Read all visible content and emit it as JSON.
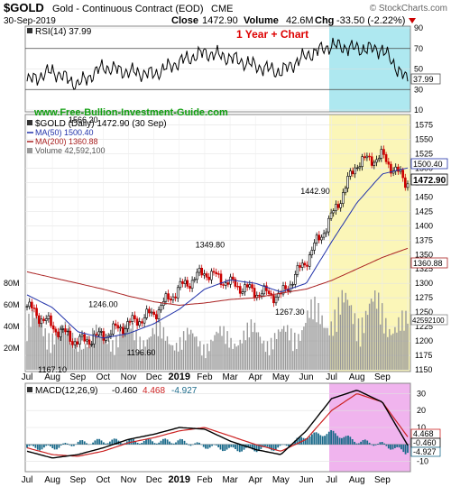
{
  "header": {
    "symbol": "$GOLD",
    "description": "Gold - Continuous Contract (EOD)",
    "exchange": "CME",
    "watermark": "© StockCharts.com",
    "date": "30-Sep-2019",
    "close_label": "Close",
    "close_value": "1472.90",
    "volume_label": "Volume",
    "volume_value": "42.6M",
    "change_label": "Chg",
    "change_value": "-33.50 (-2.22%)"
  },
  "annotations": {
    "chart_title": "1 Year + Chart",
    "website": "www.Free-Bullion-Investment-Guide.com"
  },
  "colors": {
    "price": "#000000",
    "up_candle": "#000000",
    "down_candle": "#cc0000",
    "ma50": "#2233aa",
    "ma200": "#aa2222",
    "volume": "#999999",
    "macd": "#000000",
    "signal": "#cc2222",
    "histogram": "#1a6a8a",
    "rsi_highlight": "#aee8f0",
    "price_highlight": "#fbf6b8",
    "macd_highlight": "#f0b4ee",
    "title_red": "#dd0000",
    "website_green": "#10a010"
  },
  "chart_data": [
    {
      "type": "line",
      "panel": "rsi",
      "label": "RSI(14) 37.99",
      "current_value": "37.99",
      "ylim": [
        10,
        90
      ],
      "yticks": [
        "90",
        "70",
        "50",
        "30",
        "10"
      ],
      "reference_lines": [
        70,
        30
      ],
      "x": [
        "Jul",
        "Aug",
        "Sep",
        "Oct",
        "Nov",
        "Dec",
        "2019",
        "Feb",
        "Mar",
        "Apr",
        "May",
        "Jun",
        "Jul",
        "Aug",
        "Sep",
        "30 Sep"
      ],
      "values": [
        38,
        48,
        35,
        52,
        47,
        45,
        57,
        66,
        61,
        53,
        47,
        63,
        73,
        70,
        69,
        37.99
      ]
    },
    {
      "type": "line",
      "panel": "price",
      "label": "$GOLD (Daily) 1472.90 (30 Sep)",
      "ylim": [
        1150,
        1590
      ],
      "yticks": [
        "1575",
        "1550",
        "1525",
        "1500",
        "1475",
        "1450",
        "1425",
        "1400",
        "1375",
        "1350",
        "1325",
        "1300",
        "1275",
        "1250",
        "1225",
        "1200",
        "1175",
        "1150"
      ],
      "x": [
        "Jul",
        "Aug",
        "Sep",
        "Oct",
        "Nov",
        "Dec",
        "2019",
        "Feb",
        "Mar",
        "Apr",
        "May",
        "Jun",
        "Jul",
        "Aug",
        "Sep",
        "30 Sep"
      ],
      "series": [
        {
          "name": "$GOLD",
          "values": [
            1260,
            1225,
            1198,
            1210,
            1230,
            1248,
            1292,
            1320,
            1300,
            1285,
            1278,
            1340,
            1415,
            1510,
            1520,
            1472.9
          ]
        },
        {
          "name": "MA(50) 1500.40",
          "values": [
            1280,
            1258,
            1216,
            1205,
            1213,
            1230,
            1255,
            1290,
            1306,
            1300,
            1285,
            1300,
            1372,
            1440,
            1490,
            1500.4
          ]
        },
        {
          "name": "MA(200) 1360.88",
          "values": [
            1320,
            1310,
            1300,
            1290,
            1278,
            1268,
            1262,
            1266,
            1272,
            1275,
            1283,
            1290,
            1305,
            1325,
            1345,
            1360.88
          ]
        }
      ],
      "value_labels": [
        {
          "x": "Aug",
          "value": "1167.10"
        },
        {
          "x": "Oct",
          "value": "1246.00"
        },
        {
          "x": "Nov",
          "value": "1196.60"
        },
        {
          "x": "Feb",
          "value": "1349.80"
        },
        {
          "x": "May",
          "value": "1267.30"
        },
        {
          "x": "Jun",
          "value": "1442.90"
        },
        {
          "x": "Sep",
          "value": "1566.20"
        }
      ],
      "axis_labels": {
        "ma50_value": "1500.40",
        "close_value": "1472.90",
        "ma200_value": "1360.88"
      }
    },
    {
      "type": "bar",
      "panel": "volume",
      "label": "Volume 42,592,100",
      "current_value": "42592100",
      "current_label": "42592100",
      "ylim": [
        0,
        100
      ],
      "unit": "M",
      "yticks": [
        "80M",
        "60M",
        "40M",
        "20M"
      ],
      "x": [
        "Jul",
        "Aug",
        "Sep",
        "Oct",
        "Nov",
        "Dec",
        "2019",
        "Feb",
        "Mar",
        "Apr",
        "May",
        "Jun",
        "Jul",
        "Aug",
        "Sep",
        "30 Sep"
      ],
      "values": [
        48,
        44,
        30,
        35,
        40,
        37,
        33,
        31,
        35,
        38,
        33,
        52,
        60,
        63,
        60,
        42.6
      ]
    },
    {
      "type": "line",
      "panel": "macd",
      "label": "MACD(12,26,9)",
      "macd_value": "-0.460",
      "signal_value": "4.468",
      "histogram_value": "-4.927",
      "ylim": [
        -15,
        35
      ],
      "yticks": [
        "30",
        "20",
        "10",
        "0",
        "-10"
      ],
      "x": [
        "Jul",
        "Aug",
        "Sep",
        "Oct",
        "Nov",
        "Dec",
        "2019",
        "Feb",
        "Mar",
        "Apr",
        "May",
        "Jun",
        "Jul",
        "Aug",
        "Sep",
        "30 Sep"
      ],
      "series": [
        {
          "name": "MACD",
          "values": [
            -4,
            -8,
            -6,
            -2,
            3,
            6,
            10,
            9,
            2,
            -3,
            -6,
            8,
            27,
            32,
            25,
            -0.46
          ]
        },
        {
          "name": "Signal",
          "values": [
            -2,
            -6,
            -7,
            -4,
            1,
            4,
            8,
            10,
            5,
            0,
            -4,
            3,
            20,
            30,
            25,
            4.468
          ]
        },
        {
          "name": "Histogram",
          "values": [
            -2,
            -2,
            1,
            2,
            2,
            2,
            2,
            -1,
            -3,
            -3,
            -2,
            5,
            7,
            2,
            0,
            -4.927
          ]
        }
      ]
    }
  ],
  "x_axis": {
    "labels": [
      "Jul",
      "Aug",
      "Sep",
      "Oct",
      "Nov",
      "Dec",
      "2019",
      "Feb",
      "Mar",
      "Apr",
      "May",
      "Jun",
      "Jul",
      "Aug",
      "Sep"
    ]
  }
}
